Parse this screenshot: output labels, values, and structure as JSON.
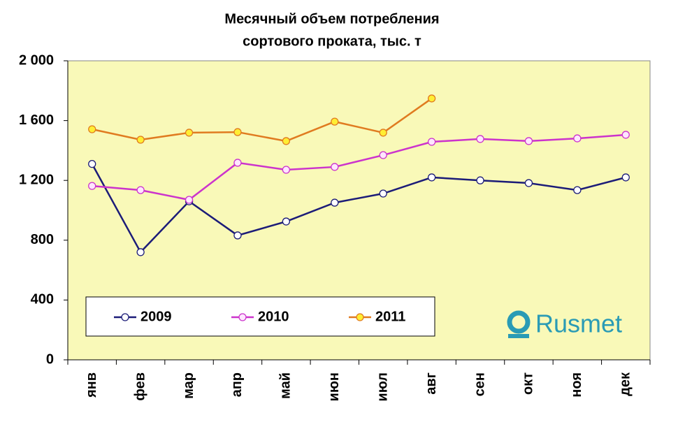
{
  "chart_data": {
    "type": "line",
    "title": [
      "Месячный объем потребления",
      "сортового проката, тыс. т"
    ],
    "categories": [
      "янв",
      "фев",
      "мар",
      "апр",
      "май",
      "июн",
      "июл",
      "авг",
      "сен",
      "окт",
      "ноя",
      "дек"
    ],
    "series": [
      {
        "name": "2009",
        "color": "#1c1c78",
        "marker_color": "#ffffff",
        "values": [
          1310,
          720,
          1060,
          832,
          925,
          1051,
          1112,
          1220,
          1200,
          1182,
          1135,
          1220
        ]
      },
      {
        "name": "2010",
        "color": "#cc33cc",
        "marker_color": "#ffe6ff",
        "values": [
          1163,
          1135,
          1070,
          1318,
          1271,
          1290,
          1369,
          1458,
          1477,
          1463,
          1481,
          1505
        ]
      },
      {
        "name": "2011",
        "color": "#e07b20",
        "marker_color": "#ffee33",
        "values": [
          1542,
          1472,
          1519,
          1523,
          1463,
          1593,
          1519,
          1748,
          null,
          null,
          null,
          null
        ]
      }
    ],
    "ylim": [
      0,
      2000
    ],
    "yticks": [
      0,
      400,
      800,
      {
        "value": 1200,
        "label": "1 200"
      },
      {
        "value": 1600,
        "label": "1 600"
      },
      {
        "value": 2000,
        "label": "2 000"
      }
    ],
    "plot_background": "#f9f9b8",
    "grid": false,
    "legend": "bottom-left",
    "logo": "Rusmet"
  }
}
